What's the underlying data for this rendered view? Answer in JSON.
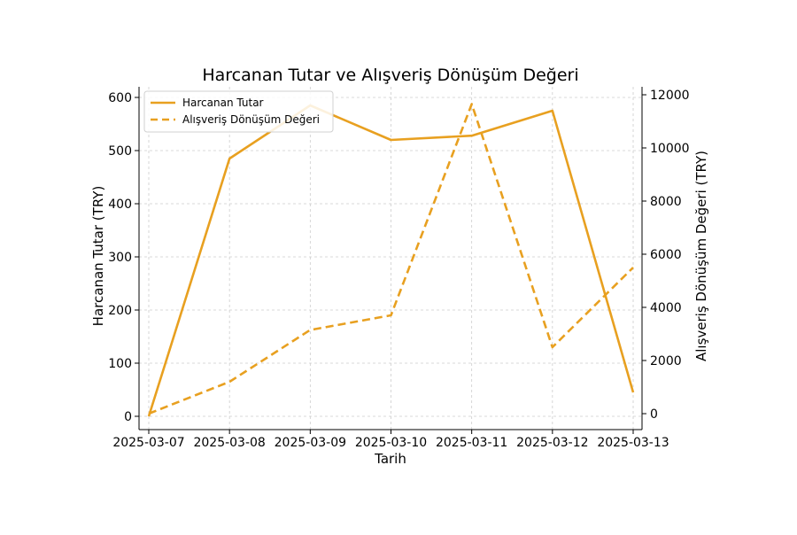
{
  "chart_data": {
    "type": "line",
    "title": "Harcanan Tutar ve Alışveriş Dönüşüm Değeri",
    "xlabel": "Tarih",
    "ylabel_left": "Harcanan Tutar (TRY)",
    "ylabel_right": "Alışveriş Dönüşüm Değeri (TRY)",
    "categories": [
      "2025-03-07",
      "2025-03-08",
      "2025-03-09",
      "2025-03-10",
      "2025-03-11",
      "2025-03-12",
      "2025-03-13"
    ],
    "ylim_left": [
      -25,
      620
    ],
    "ylim_right": [
      -600,
      12300
    ],
    "yticks_left": [
      0,
      100,
      200,
      300,
      400,
      500,
      600
    ],
    "yticks_right": [
      0,
      2000,
      4000,
      6000,
      8000,
      10000,
      12000
    ],
    "grid": true,
    "legend_position": "upper-left",
    "series": [
      {
        "name": "Harcanan Tutar",
        "axis": "left",
        "style": "solid",
        "color": "#E8A020",
        "values": [
          0,
          485,
          585,
          520,
          528,
          575,
          45
        ]
      },
      {
        "name": "Alışveriş Dönüşüm Değeri",
        "axis": "right",
        "style": "dashed",
        "color": "#E8A020",
        "values": [
          0,
          1200,
          3150,
          3700,
          11650,
          2500,
          5500
        ]
      }
    ]
  }
}
